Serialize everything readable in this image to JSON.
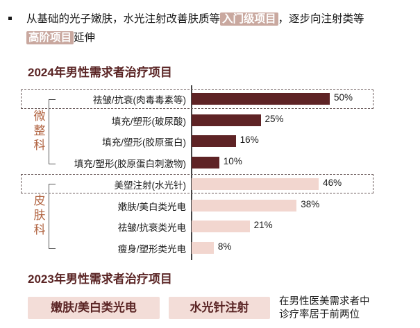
{
  "intro": {
    "text_before": "从基础的光子嫩肤，水光注射改善肤质等",
    "highlight_1": "入门级项目",
    "text_middle": "，逐步向注射类等",
    "highlight_2": "高阶项目",
    "text_after": "延伸"
  },
  "chart_data": {
    "type": "bar",
    "orientation": "horizontal",
    "title": "2024年男性需求者治疗项目",
    "groups": [
      {
        "name": "微整科",
        "chars": [
          "微",
          "整",
          "科"
        ],
        "items": [
          0,
          1,
          2,
          3
        ]
      },
      {
        "name": "皮肤科",
        "chars": [
          "皮",
          "肤",
          "科"
        ],
        "items": [
          4,
          5,
          6,
          7
        ]
      }
    ],
    "categories": [
      "祛皱/抗衰(肉毒毒素等)",
      "填充/塑形(玻尿酸)",
      "填充/塑形(胶原蛋白)",
      "填充/塑形(胶原蛋白刺激物)",
      "美塑注射(水光针)",
      "嫩肤/美白类光电",
      "祛皱/抗衰类光电",
      "瘦身/塑形类光电"
    ],
    "values": [
      50,
      25,
      16,
      10,
      46,
      38,
      21,
      8
    ],
    "value_labels": [
      "50%",
      "25%",
      "16%",
      "10%",
      "46%",
      "38%",
      "21%",
      "8%"
    ],
    "highlighted": [
      0,
      4
    ],
    "xlim": [
      0,
      100
    ],
    "colors": {
      "group_1": "#5e2325",
      "group_2": "#f2d6cf"
    }
  },
  "section2": {
    "title": "2023年男性需求者治疗项目",
    "pill_1": "嫩肤/美白类光电",
    "pill_2": "水光针注射",
    "note_line1": "在男性医美需求者中",
    "note_line2": "诊疗率居于前两位"
  }
}
